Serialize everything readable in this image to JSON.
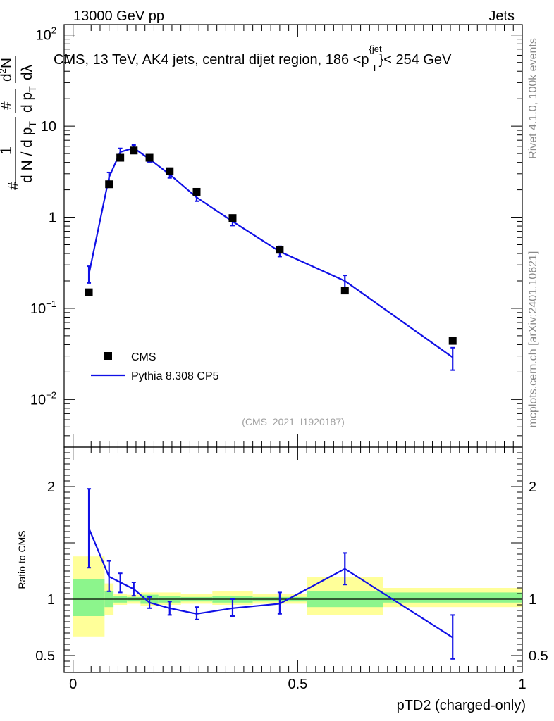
{
  "header": {
    "left": "13000 GeV pp",
    "right": "Jets"
  },
  "side_labels": {
    "rivet": "Rivet 4.1.0,  100k events",
    "source": "mcplots.cern.ch [arXiv:2401.10621]"
  },
  "colors": {
    "cms": "#000000",
    "pythia": "#1010e6",
    "band_inner": "#8cf58c",
    "band_outer": "#ffff99"
  },
  "chart_data": [
    {
      "type": "scatter",
      "panel": "main",
      "title": "CMS, 13 TeV, AK4 jets, central dijet region, 186 <p",
      "title_sup": "{jet",
      "title_sub": "T",
      "title_end": "}< 254 GeV",
      "watermark": "(CMS_2021_I1920187)",
      "xlabel": "",
      "ylabel_parts": {
        "hash": "#",
        "one": "1",
        "denom": "d N / d p",
        "denom_sub": "T",
        "num": "d",
        "num_sup": "2",
        "num_end": "N",
        "frac2_num": "#",
        "frac2_den": "d p",
        "frac2_den_sub": "T",
        "frac2_lam": "dλ"
      },
      "yscale": "log",
      "ylim": [
        0.003,
        130
      ],
      "xlim": [
        -0.02,
        1.0
      ],
      "yticks": [
        {
          "v": 100,
          "base": "10",
          "exp": "2"
        },
        {
          "v": 10,
          "base": "10",
          "exp": ""
        },
        {
          "v": 1,
          "base": "1",
          "exp": ""
        },
        {
          "v": 0.1,
          "base": "10",
          "exp": "−1"
        },
        {
          "v": 0.01,
          "base": "10",
          "exp": "−2"
        }
      ],
      "legend": {
        "position": "bottom-left",
        "entries": [
          "CMS",
          "Pythia 8.308 CP5"
        ]
      },
      "series": [
        {
          "name": "CMS",
          "style": "markers",
          "points": [
            {
              "x": 0.035,
              "y": 0.15
            },
            {
              "x": 0.08,
              "y": 2.3
            },
            {
              "x": 0.105,
              "y": 4.5
            },
            {
              "x": 0.135,
              "y": 5.4
            },
            {
              "x": 0.17,
              "y": 4.5
            },
            {
              "x": 0.215,
              "y": 3.2
            },
            {
              "x": 0.275,
              "y": 1.9
            },
            {
              "x": 0.355,
              "y": 0.98
            },
            {
              "x": 0.46,
              "y": 0.44
            },
            {
              "x": 0.605,
              "y": 0.157
            },
            {
              "x": 0.845,
              "y": 0.044
            }
          ]
        },
        {
          "name": "Pythia 8.308 CP5",
          "style": "line",
          "points": [
            {
              "x": 0.035,
              "y": 0.235,
              "lo": 0.19,
              "hi": 0.29
            },
            {
              "x": 0.08,
              "y": 2.75,
              "lo": 2.45,
              "hi": 3.1
            },
            {
              "x": 0.105,
              "y": 5.2,
              "lo": 4.8,
              "hi": 5.7
            },
            {
              "x": 0.135,
              "y": 5.75,
              "lo": 5.4,
              "hi": 6.2
            },
            {
              "x": 0.17,
              "y": 4.35,
              "lo": 4.05,
              "hi": 4.7
            },
            {
              "x": 0.215,
              "y": 2.95,
              "lo": 2.7,
              "hi": 3.25
            },
            {
              "x": 0.275,
              "y": 1.65,
              "lo": 1.5,
              "hi": 1.85
            },
            {
              "x": 0.355,
              "y": 0.9,
              "lo": 0.81,
              "hi": 1.0
            },
            {
              "x": 0.46,
              "y": 0.42,
              "lo": 0.37,
              "hi": 0.48
            },
            {
              "x": 0.605,
              "y": 0.2,
              "lo": 0.17,
              "hi": 0.23
            },
            {
              "x": 0.845,
              "y": 0.029,
              "lo": 0.021,
              "hi": 0.037
            }
          ]
        }
      ]
    },
    {
      "type": "line",
      "panel": "ratio",
      "xlabel": "pTD2 (charged-only)",
      "ylabel": "Ratio to CMS",
      "ylim": [
        0.35,
        2.35
      ],
      "xlim": [
        -0.02,
        1.0
      ],
      "xticks": [
        {
          "v": 0,
          "label": "0"
        },
        {
          "v": 0.5,
          "label": "0.5"
        },
        {
          "v": 1,
          "label": "1"
        }
      ],
      "yticks": [
        {
          "v": 2,
          "label": "2"
        },
        {
          "v": 1,
          "label": "1"
        },
        {
          "v": 0.5,
          "label": "0.5"
        }
      ],
      "bands": [
        {
          "x0": 0.0,
          "x1": 0.07,
          "in_lo": 0.85,
          "in_hi": 1.18,
          "out_lo": 0.67,
          "out_hi": 1.38
        },
        {
          "x0": 0.07,
          "x1": 0.09,
          "in_lo": 0.93,
          "in_hi": 1.07,
          "out_lo": 0.86,
          "out_hi": 1.14
        },
        {
          "x0": 0.09,
          "x1": 0.12,
          "in_lo": 0.97,
          "in_hi": 1.03,
          "out_lo": 0.95,
          "out_hi": 1.05
        },
        {
          "x0": 0.12,
          "x1": 0.15,
          "in_lo": 0.98,
          "in_hi": 1.02,
          "out_lo": 0.96,
          "out_hi": 1.04
        },
        {
          "x0": 0.15,
          "x1": 0.19,
          "in_lo": 0.96,
          "in_hi": 1.04,
          "out_lo": 0.94,
          "out_hi": 1.06
        },
        {
          "x0": 0.19,
          "x1": 0.24,
          "in_lo": 0.97,
          "in_hi": 1.03,
          "out_lo": 0.95,
          "out_hi": 1.06
        },
        {
          "x0": 0.24,
          "x1": 0.31,
          "in_lo": 0.98,
          "in_hi": 1.02,
          "out_lo": 0.96,
          "out_hi": 1.05
        },
        {
          "x0": 0.31,
          "x1": 0.4,
          "in_lo": 0.97,
          "in_hi": 1.03,
          "out_lo": 0.95,
          "out_hi": 1.07
        },
        {
          "x0": 0.4,
          "x1": 0.52,
          "in_lo": 0.98,
          "in_hi": 1.02,
          "out_lo": 0.96,
          "out_hi": 1.05
        },
        {
          "x0": 0.52,
          "x1": 0.69,
          "in_lo": 0.93,
          "in_hi": 1.07,
          "out_lo": 0.86,
          "out_hi": 1.2
        },
        {
          "x0": 0.69,
          "x1": 1.0,
          "in_lo": 0.97,
          "in_hi": 1.06,
          "out_lo": 0.93,
          "out_hi": 1.1
        }
      ],
      "series": [
        {
          "name": "Pythia 8.308 CP5 / CMS",
          "points": [
            {
              "x": 0.035,
              "y": 1.63,
              "lo": 1.28,
              "hi": 1.98
            },
            {
              "x": 0.08,
              "y": 1.2,
              "lo": 1.07,
              "hi": 1.34
            },
            {
              "x": 0.105,
              "y": 1.15,
              "lo": 1.06,
              "hi": 1.23
            },
            {
              "x": 0.135,
              "y": 1.09,
              "lo": 1.03,
              "hi": 1.15
            },
            {
              "x": 0.17,
              "y": 0.97,
              "lo": 0.92,
              "hi": 1.02
            },
            {
              "x": 0.215,
              "y": 0.92,
              "lo": 0.86,
              "hi": 0.98
            },
            {
              "x": 0.275,
              "y": 0.87,
              "lo": 0.82,
              "hi": 0.93
            },
            {
              "x": 0.355,
              "y": 0.92,
              "lo": 0.85,
              "hi": 1.0
            },
            {
              "x": 0.46,
              "y": 0.96,
              "lo": 0.87,
              "hi": 1.06
            },
            {
              "x": 0.605,
              "y": 1.27,
              "lo": 1.13,
              "hi": 1.41
            },
            {
              "x": 0.845,
              "y": 0.66,
              "lo": 0.47,
              "hi": 0.86
            }
          ]
        }
      ]
    }
  ]
}
